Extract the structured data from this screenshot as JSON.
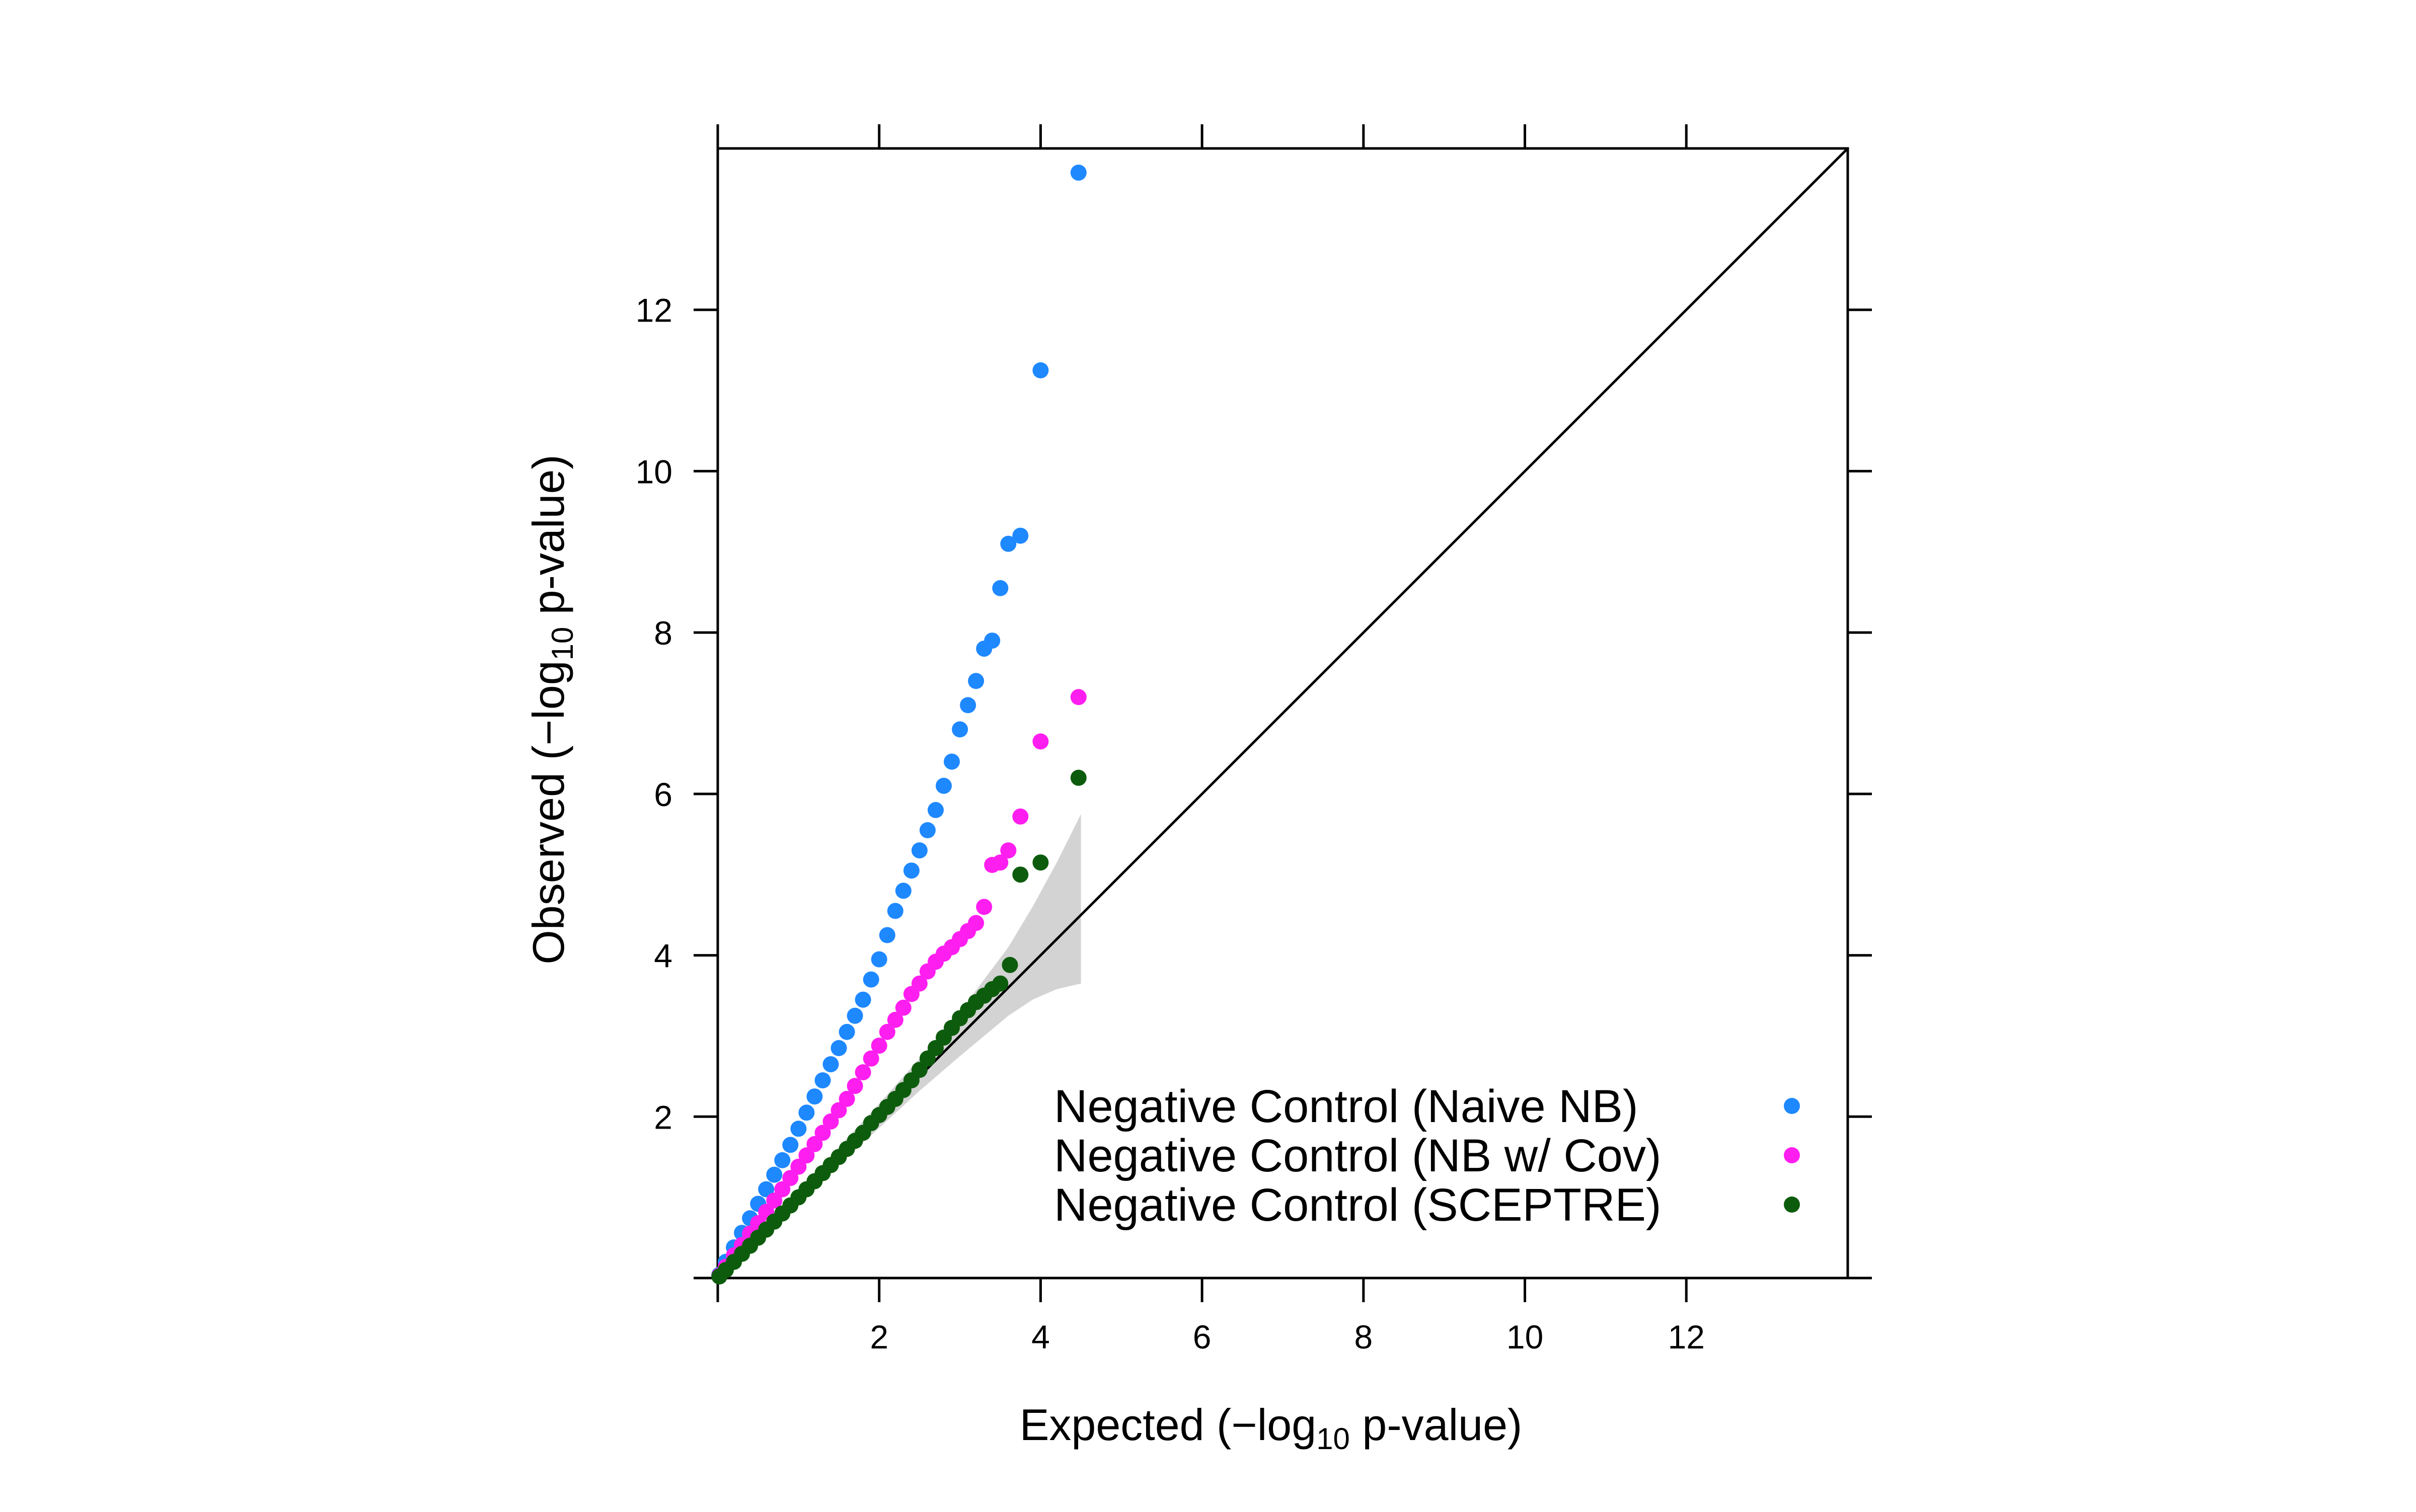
{
  "chart_data": {
    "type": "scatter",
    "title": "",
    "xlabel": {
      "prefix": "Expected (−log",
      "sub": "10",
      "suffix": " p-value)"
    },
    "ylabel": {
      "prefix": "Observed (−log",
      "sub": "10",
      "suffix": " p-value)"
    },
    "xlim": [
      0,
      14
    ],
    "ylim": [
      0,
      14
    ],
    "x_ticks": [
      2,
      4,
      6,
      8,
      10,
      12
    ],
    "y_ticks": [
      2,
      4,
      6,
      8,
      10,
      12
    ],
    "x_tick_labels": [
      "2",
      "4",
      "6",
      "8",
      "10",
      "12"
    ],
    "y_tick_labels": [
      "2",
      "4",
      "6",
      "8",
      "10",
      "12"
    ],
    "reference_line": "y = x",
    "confidence_band": {
      "color": "#d3d3d3",
      "x": [
        0.05,
        0.5,
        1.0,
        1.5,
        2.0,
        2.5,
        3.0,
        3.3,
        3.6,
        3.9,
        4.2,
        4.5
      ],
      "upper": [
        0.06,
        0.55,
        1.08,
        1.62,
        2.16,
        2.72,
        3.3,
        3.7,
        4.1,
        4.6,
        5.15,
        5.75
      ],
      "lower": [
        0.04,
        0.45,
        0.93,
        1.4,
        1.86,
        2.32,
        2.75,
        3.0,
        3.25,
        3.45,
        3.58,
        3.65
      ]
    },
    "legend_position": "bottom-right",
    "series": [
      {
        "name": "Negative Control (Naive NB)",
        "color": "#1e88ff",
        "points": [
          [
            0.02,
            0.04
          ],
          [
            0.1,
            0.2
          ],
          [
            0.2,
            0.38
          ],
          [
            0.3,
            0.56
          ],
          [
            0.4,
            0.74
          ],
          [
            0.5,
            0.92
          ],
          [
            0.6,
            1.1
          ],
          [
            0.7,
            1.28
          ],
          [
            0.8,
            1.46
          ],
          [
            0.9,
            1.65
          ],
          [
            1.0,
            1.85
          ],
          [
            1.1,
            2.05
          ],
          [
            1.2,
            2.25
          ],
          [
            1.3,
            2.45
          ],
          [
            1.4,
            2.65
          ],
          [
            1.5,
            2.85
          ],
          [
            1.6,
            3.05
          ],
          [
            1.7,
            3.25
          ],
          [
            1.8,
            3.45
          ],
          [
            1.9,
            3.7
          ],
          [
            2.0,
            3.95
          ],
          [
            2.1,
            4.25
          ],
          [
            2.2,
            4.55
          ],
          [
            2.3,
            4.8
          ],
          [
            2.4,
            5.05
          ],
          [
            2.5,
            5.3
          ],
          [
            2.6,
            5.55
          ],
          [
            2.7,
            5.8
          ],
          [
            2.8,
            6.1
          ],
          [
            2.9,
            6.4
          ],
          [
            3.0,
            6.8
          ],
          [
            3.1,
            7.1
          ],
          [
            3.2,
            7.4
          ],
          [
            3.3,
            7.8
          ],
          [
            3.4,
            7.9
          ],
          [
            3.5,
            8.55
          ],
          [
            3.6,
            9.1
          ],
          [
            3.75,
            9.2
          ],
          [
            4.0,
            11.25
          ],
          [
            4.47,
            13.7
          ]
        ]
      },
      {
        "name": "Negative Control (NB w/ Cov)",
        "color": "#ff1ef0",
        "points": [
          [
            0.02,
            0.03
          ],
          [
            0.1,
            0.14
          ],
          [
            0.2,
            0.28
          ],
          [
            0.3,
            0.41
          ],
          [
            0.4,
            0.55
          ],
          [
            0.5,
            0.68
          ],
          [
            0.6,
            0.82
          ],
          [
            0.7,
            0.96
          ],
          [
            0.8,
            1.1
          ],
          [
            0.9,
            1.24
          ],
          [
            1.0,
            1.38
          ],
          [
            1.1,
            1.52
          ],
          [
            1.2,
            1.66
          ],
          [
            1.3,
            1.8
          ],
          [
            1.4,
            1.94
          ],
          [
            1.5,
            2.08
          ],
          [
            1.6,
            2.22
          ],
          [
            1.7,
            2.38
          ],
          [
            1.8,
            2.55
          ],
          [
            1.9,
            2.72
          ],
          [
            2.0,
            2.88
          ],
          [
            2.1,
            3.05
          ],
          [
            2.2,
            3.2
          ],
          [
            2.3,
            3.35
          ],
          [
            2.4,
            3.52
          ],
          [
            2.5,
            3.65
          ],
          [
            2.6,
            3.8
          ],
          [
            2.7,
            3.92
          ],
          [
            2.8,
            4.02
          ],
          [
            2.9,
            4.1
          ],
          [
            3.0,
            4.2
          ],
          [
            3.1,
            4.3
          ],
          [
            3.2,
            4.4
          ],
          [
            3.3,
            4.6
          ],
          [
            3.4,
            5.12
          ],
          [
            3.5,
            5.15
          ],
          [
            3.6,
            5.3
          ],
          [
            3.75,
            5.72
          ],
          [
            4.0,
            6.65
          ],
          [
            4.47,
            7.2
          ]
        ]
      },
      {
        "name": "Negative Control (SCEPTRE)",
        "color": "#0d5c0d",
        "points": [
          [
            0.02,
            0.02
          ],
          [
            0.1,
            0.1
          ],
          [
            0.2,
            0.2
          ],
          [
            0.3,
            0.3
          ],
          [
            0.4,
            0.4
          ],
          [
            0.5,
            0.5
          ],
          [
            0.6,
            0.6
          ],
          [
            0.7,
            0.7
          ],
          [
            0.8,
            0.8
          ],
          [
            0.9,
            0.9
          ],
          [
            1.0,
            1.0
          ],
          [
            1.1,
            1.1
          ],
          [
            1.2,
            1.2
          ],
          [
            1.3,
            1.3
          ],
          [
            1.4,
            1.4
          ],
          [
            1.5,
            1.5
          ],
          [
            1.6,
            1.6
          ],
          [
            1.7,
            1.7
          ],
          [
            1.8,
            1.8
          ],
          [
            1.9,
            1.92
          ],
          [
            2.0,
            2.02
          ],
          [
            2.1,
            2.12
          ],
          [
            2.2,
            2.22
          ],
          [
            2.3,
            2.33
          ],
          [
            2.4,
            2.45
          ],
          [
            2.5,
            2.58
          ],
          [
            2.6,
            2.72
          ],
          [
            2.7,
            2.85
          ],
          [
            2.8,
            2.98
          ],
          [
            2.9,
            3.1
          ],
          [
            3.0,
            3.22
          ],
          [
            3.1,
            3.32
          ],
          [
            3.2,
            3.42
          ],
          [
            3.3,
            3.5
          ],
          [
            3.4,
            3.58
          ],
          [
            3.5,
            3.65
          ],
          [
            3.62,
            3.88
          ],
          [
            3.75,
            5.0
          ],
          [
            4.0,
            5.15
          ],
          [
            4.47,
            6.2
          ]
        ]
      }
    ]
  }
}
